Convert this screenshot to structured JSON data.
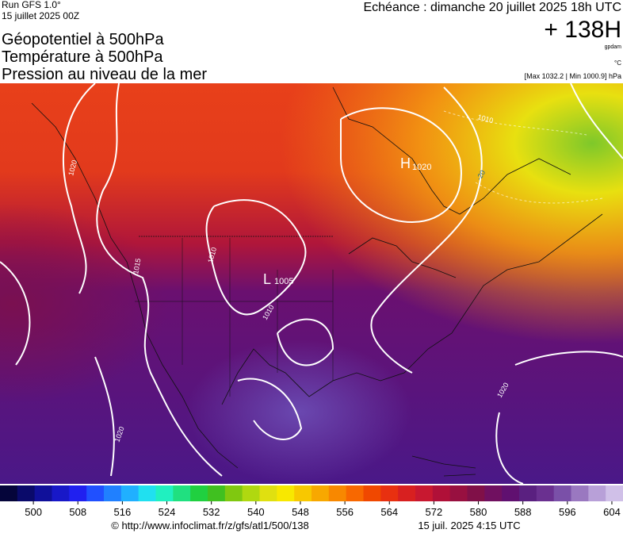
{
  "header": {
    "run": "Run GFS 1.0°",
    "run_date": "15 juillet 2025 00Z",
    "titles": [
      "Géopotentiel à 500hPa",
      "Température à 500hPa",
      "Pression au niveau de la mer"
    ],
    "valid": "Echéance : dimanche 20 juillet 2025 18h UTC",
    "lead": "+ 138H",
    "unit_geo": "gpdam",
    "unit_temp": "°C",
    "range": "[Max 1032.2 | Min 1000.9] hPa"
  },
  "map": {
    "highs": [
      {
        "symbol": "H",
        "value": "1020"
      }
    ],
    "lows": [
      {
        "symbol": "L",
        "value": "1005"
      }
    ],
    "contour_labels": [
      "1020",
      "1010",
      "1010",
      "1020",
      "1020",
      "1015",
      "1010",
      "-20"
    ]
  },
  "colorbar": {
    "ticks": [
      500,
      508,
      516,
      524,
      532,
      540,
      548,
      556,
      564,
      572,
      580,
      588,
      596,
      604
    ],
    "lim": [
      494,
      606
    ]
  },
  "footer": {
    "url": "© http://www.infoclimat.fr/z/gfs/atl1/500/138",
    "date": "15 juil. 2025  4:15 UTC"
  }
}
